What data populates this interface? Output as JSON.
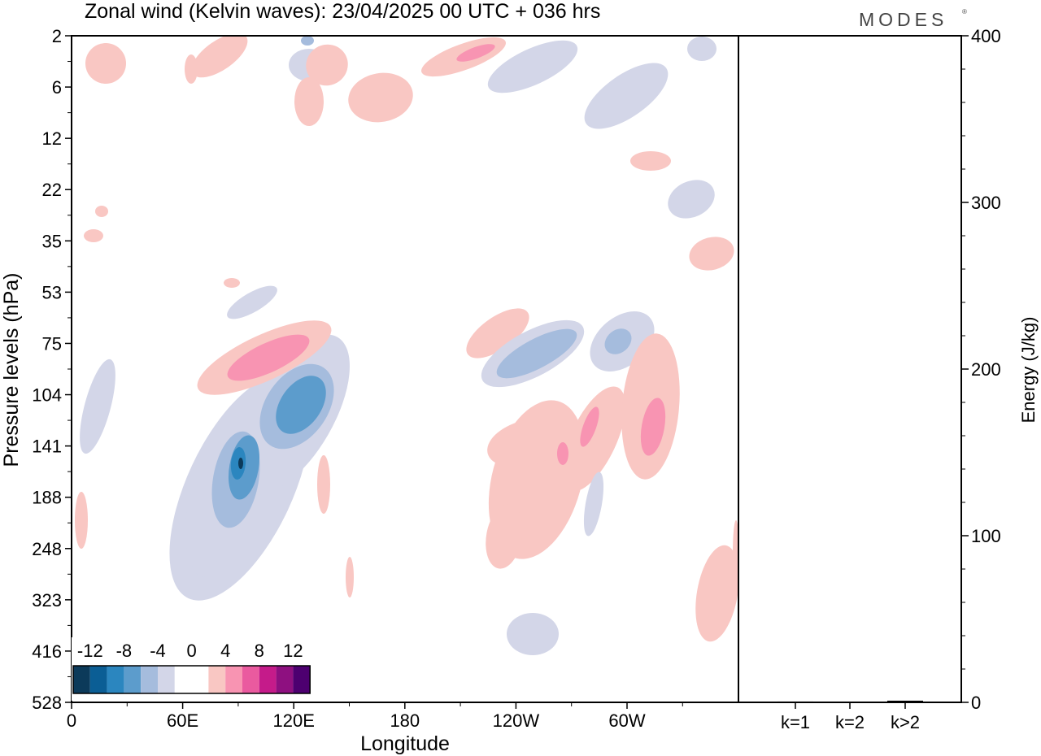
{
  "title": "Zonal wind (Kelvin waves):  23/04/2025  00 UTC  + 036 hrs",
  "logo": "MODES",
  "colors": {
    "neg12": "#0c3a5a",
    "neg10": "#0b5e95",
    "neg8": "#2b86bf",
    "neg6": "#5c9ccc",
    "neg4": "#a5bcdd",
    "neg2": "#d3d6e8",
    "zero": "#ffffff",
    "pos2": "#f9c7c3",
    "pos4": "#f894b2",
    "pos6": "#ea5a9f",
    "pos8": "#c51b8a",
    "pos10": "#8e1080",
    "pos12": "#4d0070"
  },
  "chart_data": [
    {
      "type": "heatmap",
      "title": "Zonal wind (Kelvin waves):  23/04/2025  00 UTC  + 036 hrs",
      "xlabel": "Longitude",
      "ylabel": "Pressure levels (hPa)",
      "x_ticks": [
        "0",
        "60E",
        "120E",
        "180",
        "120W",
        "60W"
      ],
      "x_range": [
        0,
        360
      ],
      "y_ticks": [
        "2",
        "6",
        "12",
        "22",
        "35",
        "53",
        "75",
        "104",
        "141",
        "188",
        "248",
        "323",
        "416",
        "528"
      ],
      "y_scale": "model-level index (top = 2 hPa, bottom = 528 hPa)",
      "colorbar": {
        "tick_labels": [
          "-12",
          "-8",
          "-4",
          "0",
          "4",
          "8",
          "12"
        ],
        "levels": [
          -12,
          -10,
          -8,
          -6,
          -4,
          -2,
          2,
          4,
          6,
          8,
          10,
          12
        ]
      },
      "features": [
        {
          "sign": "negative",
          "lon_center": 95,
          "p_center": 141,
          "peak": -12
        },
        {
          "sign": "negative",
          "lon_center": 120,
          "p_center": 104,
          "peak": -8
        },
        {
          "sign": "positive",
          "lon_center": 110,
          "p_center": 75,
          "peak": 6
        },
        {
          "sign": "negative",
          "lon_center": 245,
          "p_center": 87,
          "peak": -6
        },
        {
          "sign": "negative",
          "lon_center": 302,
          "p_center": 75,
          "peak": -6
        },
        {
          "sign": "positive",
          "lon_center": 240,
          "p_center": 170,
          "peak": 4
        },
        {
          "sign": "positive",
          "lon_center": 283,
          "p_center": 120,
          "peak": 6
        },
        {
          "sign": "positive",
          "lon_center": 314,
          "p_center": 130,
          "peak": 6
        },
        {
          "sign": "positive",
          "lon_center": 220,
          "p_center": 4,
          "peak": 8
        },
        {
          "sign": "negative",
          "lon_center": 295,
          "p_center": 8,
          "peak": -2
        }
      ]
    },
    {
      "type": "bar",
      "categories": [
        "k=1",
        "k=2",
        "k>2"
      ],
      "values": [
        0.5,
        0.3,
        1.0
      ],
      "ylabel": "Energy (J/kg)",
      "ylim": [
        0,
        400
      ],
      "y_ticks": [
        "0",
        "100",
        "200",
        "300",
        "400"
      ]
    }
  ]
}
